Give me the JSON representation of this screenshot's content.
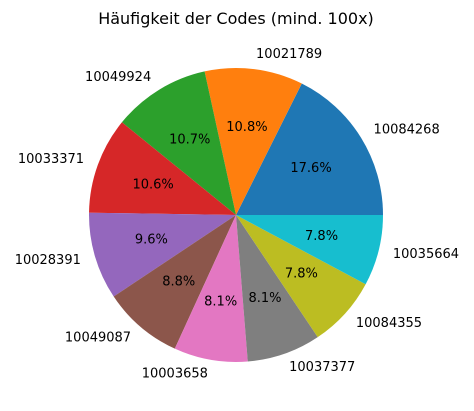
{
  "chart_data": {
    "type": "pie",
    "title": "Häufigkeit der Codes (mind. 100x)",
    "slices": [
      {
        "label": "10084268",
        "percent": 17.6,
        "percent_label": "17.6%",
        "color": "#1f77b4"
      },
      {
        "label": "10021789",
        "percent": 10.8,
        "percent_label": "10.8%",
        "color": "#ff7f0e"
      },
      {
        "label": "10049924",
        "percent": 10.7,
        "percent_label": "10.7%",
        "color": "#2ca02c"
      },
      {
        "label": "10033371",
        "percent": 10.6,
        "percent_label": "10.6%",
        "color": "#d62728"
      },
      {
        "label": "10028391",
        "percent": 9.6,
        "percent_label": "9.6%",
        "color": "#9467bd"
      },
      {
        "label": "10049087",
        "percent": 8.8,
        "percent_label": "8.8%",
        "color": "#8c564b"
      },
      {
        "label": "10003658",
        "percent": 8.1,
        "percent_label": "8.1%",
        "color": "#e377c2"
      },
      {
        "label": "10037377",
        "percent": 8.1,
        "percent_label": "8.1%",
        "color": "#7f7f7f"
      },
      {
        "label": "10084355",
        "percent": 7.8,
        "percent_label": "7.8%",
        "color": "#bcbd22"
      },
      {
        "label": "10035664",
        "percent": 7.8,
        "percent_label": "7.8%",
        "color": "#17becf"
      }
    ]
  }
}
